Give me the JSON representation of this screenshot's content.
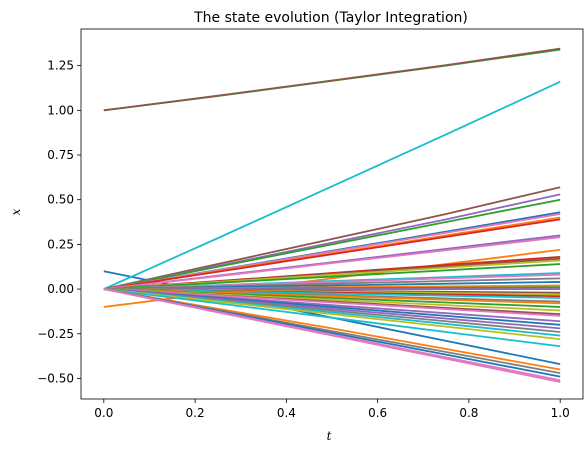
{
  "chart_data": {
    "type": "line",
    "title": "The state evolution (Taylor Integration)",
    "xlabel": "t",
    "ylabel": "x",
    "xlim": [
      -0.05,
      1.05
    ],
    "ylim": [
      -0.615,
      1.455
    ],
    "xticks": [
      "0.0",
      "0.2",
      "0.4",
      "0.6",
      "0.8",
      "1.0"
    ],
    "yticks": [
      "−0.50",
      "−0.25",
      "0.00",
      "0.25",
      "0.50",
      "0.75",
      "1.00",
      "1.25"
    ],
    "grid": false,
    "x": [
      0.0,
      0.25,
      0.5,
      0.75,
      1.0
    ],
    "series": [
      {
        "color": "#1f77b4",
        "values": [
          0.1,
          -0.03,
          -0.16,
          -0.29,
          -0.42
        ]
      },
      {
        "color": "#ff7f0e",
        "values": [
          -0.1,
          -0.02,
          0.06,
          0.14,
          0.22
        ]
      },
      {
        "color": "#2ca02c",
        "values": [
          1.0,
          1.08,
          1.165,
          1.25,
          1.34
        ]
      },
      {
        "color": "#8c564b",
        "values": [
          1.0,
          1.082,
          1.167,
          1.253,
          1.345
        ]
      },
      {
        "color": "#17becf",
        "values": [
          0.0,
          0.285,
          0.575,
          0.865,
          1.16
        ]
      },
      {
        "color": "#8c564b",
        "values": [
          0.0,
          0.14,
          0.28,
          0.42,
          0.57
        ]
      },
      {
        "color": "#9467bd",
        "values": [
          0.0,
          0.13,
          0.26,
          0.39,
          0.53
        ]
      },
      {
        "color": "#2ca02c",
        "values": [
          0.0,
          0.125,
          0.25,
          0.375,
          0.5
        ]
      },
      {
        "color": "#1f77b4",
        "values": [
          0.0,
          0.107,
          0.214,
          0.321,
          0.43
        ]
      },
      {
        "color": "#e377c2",
        "values": [
          0.0,
          0.105,
          0.21,
          0.315,
          0.42
        ]
      },
      {
        "color": "#ff7f0e",
        "values": [
          0.0,
          0.1,
          0.2,
          0.3,
          0.4
        ]
      },
      {
        "color": "#d62728",
        "values": [
          0.0,
          0.097,
          0.195,
          0.292,
          0.39
        ]
      },
      {
        "color": "#9467bd",
        "values": [
          0.0,
          0.075,
          0.15,
          0.225,
          0.3
        ]
      },
      {
        "color": "#e377c2",
        "values": [
          0.0,
          0.072,
          0.145,
          0.217,
          0.29
        ]
      },
      {
        "color": "#d62728",
        "values": [
          0.0,
          0.045,
          0.09,
          0.135,
          0.18
        ]
      },
      {
        "color": "#8c564b",
        "values": [
          0.0,
          0.042,
          0.085,
          0.127,
          0.17
        ]
      },
      {
        "color": "#bcbd22",
        "values": [
          0.0,
          0.04,
          0.08,
          0.12,
          0.16
        ]
      },
      {
        "color": "#2ca02c",
        "values": [
          0.0,
          0.035,
          0.07,
          0.105,
          0.14
        ]
      },
      {
        "color": "#17becf",
        "values": [
          0.0,
          0.022,
          0.045,
          0.067,
          0.09
        ]
      },
      {
        "color": "#e377c2",
        "values": [
          0.0,
          0.02,
          0.04,
          0.06,
          0.08
        ]
      },
      {
        "color": "#7f7f7f",
        "values": [
          0.0,
          0.015,
          0.03,
          0.045,
          0.06
        ]
      },
      {
        "color": "#1f77b4",
        "values": [
          0.0,
          0.01,
          0.02,
          0.03,
          0.04
        ]
      },
      {
        "color": "#ff7f0e",
        "values": [
          0.0,
          0.005,
          0.01,
          0.015,
          0.02
        ]
      },
      {
        "color": "#2ca02c",
        "values": [
          0.0,
          0.002,
          0.005,
          0.007,
          0.01
        ]
      },
      {
        "color": "#9467bd",
        "values": [
          0.0,
          0.0,
          0.0,
          0.0,
          0.0
        ]
      },
      {
        "color": "#8c564b",
        "values": [
          0.0,
          -0.005,
          -0.01,
          -0.015,
          -0.02
        ]
      },
      {
        "color": "#bcbd22",
        "values": [
          0.0,
          -0.007,
          -0.015,
          -0.022,
          -0.03
        ]
      },
      {
        "color": "#d62728",
        "values": [
          0.0,
          -0.01,
          -0.02,
          -0.03,
          -0.04
        ]
      },
      {
        "color": "#17becf",
        "values": [
          0.0,
          -0.012,
          -0.025,
          -0.037,
          -0.05
        ]
      },
      {
        "color": "#7f7f7f",
        "values": [
          0.0,
          -0.017,
          -0.035,
          -0.052,
          -0.07
        ]
      },
      {
        "color": "#ff7f0e",
        "values": [
          0.0,
          -0.02,
          -0.04,
          -0.06,
          -0.08
        ]
      },
      {
        "color": "#2ca02c",
        "values": [
          0.0,
          -0.025,
          -0.05,
          -0.075,
          -0.1
        ]
      },
      {
        "color": "#bcbd22",
        "values": [
          0.0,
          -0.03,
          -0.06,
          -0.09,
          -0.12
        ]
      },
      {
        "color": "#8c564b",
        "values": [
          0.0,
          -0.035,
          -0.07,
          -0.105,
          -0.14
        ]
      },
      {
        "color": "#e377c2",
        "values": [
          0.0,
          -0.037,
          -0.075,
          -0.112,
          -0.15
        ]
      },
      {
        "color": "#9467bd",
        "values": [
          0.0,
          -0.045,
          -0.09,
          -0.135,
          -0.18
        ]
      },
      {
        "color": "#1f77b4",
        "values": [
          0.0,
          -0.05,
          -0.1,
          -0.15,
          -0.2
        ]
      },
      {
        "color": "#9467bd",
        "values": [
          0.0,
          -0.055,
          -0.11,
          -0.165,
          -0.22
        ]
      },
      {
        "color": "#7f7f7f",
        "values": [
          0.0,
          -0.06,
          -0.12,
          -0.18,
          -0.24
        ]
      },
      {
        "color": "#17becf",
        "values": [
          0.0,
          -0.065,
          -0.13,
          -0.195,
          -0.26
        ]
      },
      {
        "color": "#bcbd22",
        "values": [
          0.0,
          -0.07,
          -0.14,
          -0.21,
          -0.28
        ]
      },
      {
        "color": "#17becf",
        "values": [
          0.0,
          -0.08,
          -0.16,
          -0.24,
          -0.32
        ]
      },
      {
        "color": "#ff7f0e",
        "values": [
          0.0,
          -0.11,
          -0.22,
          -0.335,
          -0.45
        ]
      },
      {
        "color": "#7f7f7f",
        "values": [
          0.0,
          -0.117,
          -0.235,
          -0.352,
          -0.47
        ]
      },
      {
        "color": "#1f77b4",
        "values": [
          0.0,
          -0.122,
          -0.245,
          -0.367,
          -0.49
        ]
      },
      {
        "color": "#e377c2",
        "values": [
          0.0,
          -0.127,
          -0.255,
          -0.382,
          -0.51
        ]
      },
      {
        "color": "#e377c2",
        "values": [
          0.0,
          -0.13,
          -0.26,
          -0.39,
          -0.52
        ]
      }
    ]
  }
}
